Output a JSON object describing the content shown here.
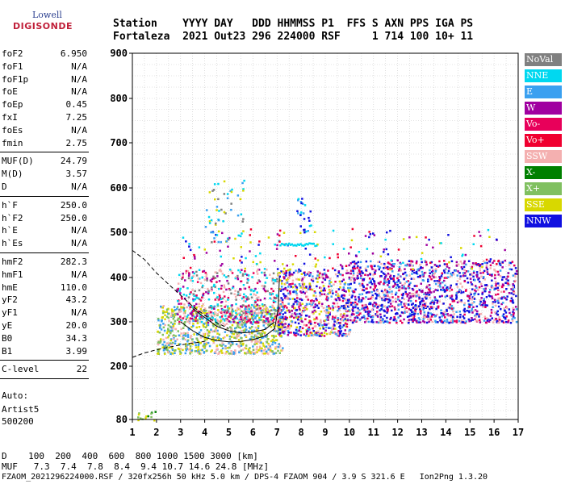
{
  "logo": {
    "line1": "Lowell",
    "line2": "DIGISONDE"
  },
  "header": {
    "line1": "Station    YYYY DAY   DDD HHMMSS P1  FFS S AXN PPS IGA PS",
    "line2": "Fortaleza  2021 Out23 296 224000 RSF     1 714 100 10+ 11"
  },
  "params_group1": [
    {
      "key": "foF2",
      "value": "6.950"
    },
    {
      "key": "foF1",
      "value": "N/A"
    },
    {
      "key": "foF1p",
      "value": "N/A"
    },
    {
      "key": "foE",
      "value": "N/A"
    },
    {
      "key": "foEp",
      "value": "0.45"
    },
    {
      "key": "fxI",
      "value": "7.25"
    },
    {
      "key": "foEs",
      "value": "N/A"
    },
    {
      "key": "fmin",
      "value": "2.75"
    }
  ],
  "params_group2": [
    {
      "key": "MUF(D)",
      "value": "24.79"
    },
    {
      "key": "M(D)",
      "value": "3.57"
    },
    {
      "key": "D",
      "value": "N/A"
    }
  ],
  "params_group3": [
    {
      "key": "h`F",
      "value": "250.0"
    },
    {
      "key": "h`F2",
      "value": "250.0"
    },
    {
      "key": "h`E",
      "value": "N/A"
    },
    {
      "key": "h`Es",
      "value": "N/A"
    }
  ],
  "params_group4": [
    {
      "key": "hmF2",
      "value": "282.3"
    },
    {
      "key": "hmF1",
      "value": "N/A"
    },
    {
      "key": "hmE",
      "value": "110.0"
    },
    {
      "key": "yF2",
      "value": "43.2"
    },
    {
      "key": "yF1",
      "value": "N/A"
    },
    {
      "key": "yE",
      "value": "20.0"
    },
    {
      "key": "B0",
      "value": "34.3"
    },
    {
      "key": "B1",
      "value": "3.99"
    }
  ],
  "params_group5": [
    {
      "key": "C-level",
      "value": "22"
    }
  ],
  "auto": {
    "line1": "Auto:",
    "line2": "Artist5",
    "line3": "500200"
  },
  "legend": [
    {
      "label": "NoVal",
      "color": "#808080"
    },
    {
      "label": "NNE",
      "color": "#00d8f0"
    },
    {
      "label": "E",
      "color": "#3aa0f0"
    },
    {
      "label": "W",
      "color": "#a000a0"
    },
    {
      "label": "Vo-",
      "color": "#e8005a"
    },
    {
      "label": "Vo+",
      "color": "#f00030"
    },
    {
      "label": "SSW",
      "color": "#f4b0b0"
    },
    {
      "label": "X-",
      "color": "#008000"
    },
    {
      "label": "X+",
      "color": "#80c060"
    },
    {
      "label": "SSE",
      "color": "#d8d800"
    },
    {
      "label": "NNW",
      "color": "#1010e0"
    }
  ],
  "footer": {
    "line1": "D    100  200  400  600  800 1000 1500 3000 [km]",
    "line2": "MUF   7.3  7.4  7.8  8.4  9.4 10.7 14.6 24.8 [MHz]",
    "line3": "FZAOM_2021296224000.RSF / 320fx256h 50 kHz 5.0 km / DPS-4 FZAOM 904 / 3.9 S 321.6 E   Ion2Png 1.3.20"
  },
  "chart_data": {
    "type": "scatter",
    "title": "",
    "xlabel": "",
    "ylabel": "",
    "xlim": [
      1,
      17
    ],
    "ylim": [
      80,
      900
    ],
    "x_ticks": [
      1,
      2,
      3,
      4,
      5,
      6,
      7,
      8,
      9,
      10,
      11,
      12,
      13,
      14,
      15,
      16,
      17
    ],
    "y_ticks": [
      80,
      200,
      300,
      400,
      500,
      600,
      700,
      800,
      900
    ],
    "grid": true,
    "legend_placement": "right",
    "clusters": [
      {
        "name": "F-trace",
        "xmin": 2.0,
        "xmax": 7.2,
        "ymin": 230,
        "ymax": 340,
        "colors": [
          "#d8d800",
          "#80c060",
          "#f4b0b0",
          "#3aa0f0"
        ],
        "n": 900
      },
      {
        "name": "F-upper",
        "xmin": 2.8,
        "xmax": 7.0,
        "ymin": 300,
        "ymax": 420,
        "colors": [
          "#f4b0b0",
          "#a000a0",
          "#e8005a",
          "#808080",
          "#00d8f0"
        ],
        "n": 500
      },
      {
        "name": "mid",
        "xmin": 7.0,
        "xmax": 10.0,
        "ymin": 270,
        "ymax": 420,
        "colors": [
          "#1010e0",
          "#f4b0b0",
          "#e8005a",
          "#d8d800",
          "#a000a0",
          "#3aa0f0"
        ],
        "n": 700
      },
      {
        "name": "high",
        "xmin": 10.0,
        "xmax": 16.9,
        "ymin": 300,
        "ymax": 440,
        "colors": [
          "#1010e0",
          "#1010e0",
          "#f4b0b0",
          "#e8005a",
          "#a000a0",
          "#3aa0f0"
        ],
        "n": 1300
      },
      {
        "name": "sparse-high",
        "xmin": 3.0,
        "xmax": 16.5,
        "ymin": 420,
        "ymax": 510,
        "colors": [
          "#00d8f0",
          "#a000a0",
          "#f00030",
          "#1010e0",
          "#d8d800"
        ],
        "n": 160
      },
      {
        "name": "spikes",
        "xmin": 4.0,
        "xmax": 5.6,
        "ymin": 480,
        "ymax": 620,
        "colors": [
          "#d8d800",
          "#3aa0f0",
          "#808080",
          "#00d8f0"
        ],
        "n": 60
      },
      {
        "name": "mid-spike",
        "xmin": 7.8,
        "xmax": 8.4,
        "ymin": 500,
        "ymax": 580,
        "colors": [
          "#3aa0f0",
          "#00d8f0",
          "#1010e0"
        ],
        "n": 25
      },
      {
        "name": "lowF",
        "xmin": 1.2,
        "xmax": 2.0,
        "ymin": 80,
        "ymax": 100,
        "colors": [
          "#008000",
          "#80c060",
          "#d8d800"
        ],
        "n": 14
      }
    ],
    "streak": {
      "xmin": 7.1,
      "xmax": 8.6,
      "y": 475,
      "color": "#00d8f0"
    },
    "curves": [
      {
        "name": "dashed-upper",
        "style": "dashed",
        "points": [
          [
            1.0,
            460
          ],
          [
            1.5,
            440
          ],
          [
            2.0,
            410
          ],
          [
            2.5,
            385
          ],
          [
            3.0,
            360
          ],
          [
            3.5,
            335
          ],
          [
            4.0,
            315
          ],
          [
            4.5,
            298
          ],
          [
            5.0,
            285
          ]
        ]
      },
      {
        "name": "dashed-lower",
        "style": "dashed",
        "points": [
          [
            1.0,
            220
          ],
          [
            1.5,
            230
          ],
          [
            2.0,
            237
          ],
          [
            2.5,
            243
          ],
          [
            3.0,
            248
          ],
          [
            3.5,
            252
          ],
          [
            4.0,
            256
          ]
        ]
      },
      {
        "name": "profile",
        "style": "solid",
        "points": [
          [
            3.0,
            300
          ],
          [
            3.5,
            280
          ],
          [
            4.0,
            265
          ],
          [
            4.5,
            258
          ],
          [
            5.0,
            255
          ],
          [
            5.5,
            256
          ],
          [
            6.0,
            260
          ],
          [
            6.5,
            268
          ],
          [
            6.9,
            285
          ],
          [
            7.05,
            330
          ],
          [
            7.1,
            400
          ]
        ]
      },
      {
        "name": "profile-2",
        "style": "solid",
        "points": [
          [
            3.5,
            330
          ],
          [
            4.0,
            310
          ],
          [
            4.5,
            290
          ],
          [
            5.0,
            280
          ],
          [
            5.5,
            275
          ],
          [
            6.0,
            277
          ],
          [
            6.5,
            283
          ],
          [
            6.9,
            300
          ]
        ]
      }
    ]
  }
}
